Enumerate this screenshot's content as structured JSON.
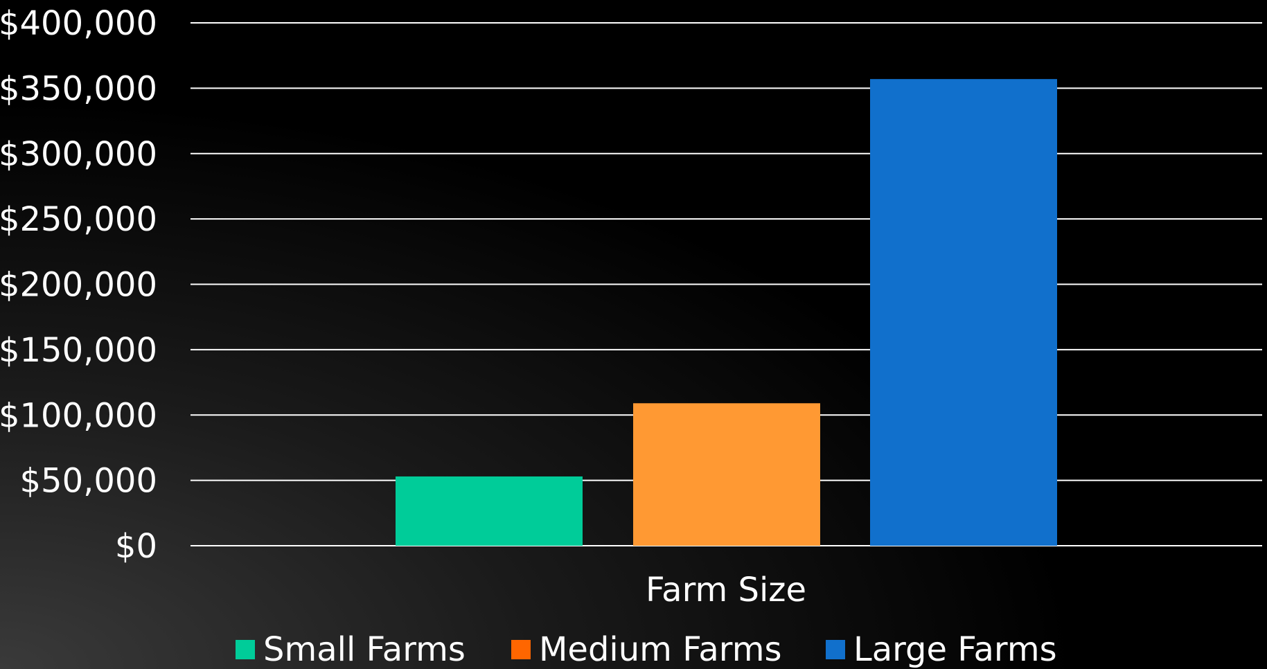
{
  "chart_data": {
    "type": "bar",
    "title": "",
    "xlabel": "Farm Size",
    "ylabel": "",
    "ylim": [
      0,
      400000
    ],
    "y_ticks": [
      "$0",
      "$50,000",
      "$100,000",
      "$150,000",
      "$200,000",
      "$250,000",
      "$300,000",
      "$350,000",
      "$400,000"
    ],
    "y_tick_values": [
      0,
      50000,
      100000,
      150000,
      200000,
      250000,
      300000,
      350000,
      400000
    ],
    "grid": true,
    "legend": "bottom",
    "series": [
      {
        "name": "Small Farms",
        "value": 53000,
        "color": "#00cc99"
      },
      {
        "name": "Medium Farms",
        "value": 109000,
        "color": "#ff9933"
      },
      {
        "name": "Large Farms",
        "value": 357000,
        "color": "#1170cc"
      }
    ],
    "legend_swatch_colors": [
      "#00cc99",
      "#ff6600",
      "#1170cc"
    ],
    "background": "#000000",
    "text_color": "#ffffff"
  }
}
